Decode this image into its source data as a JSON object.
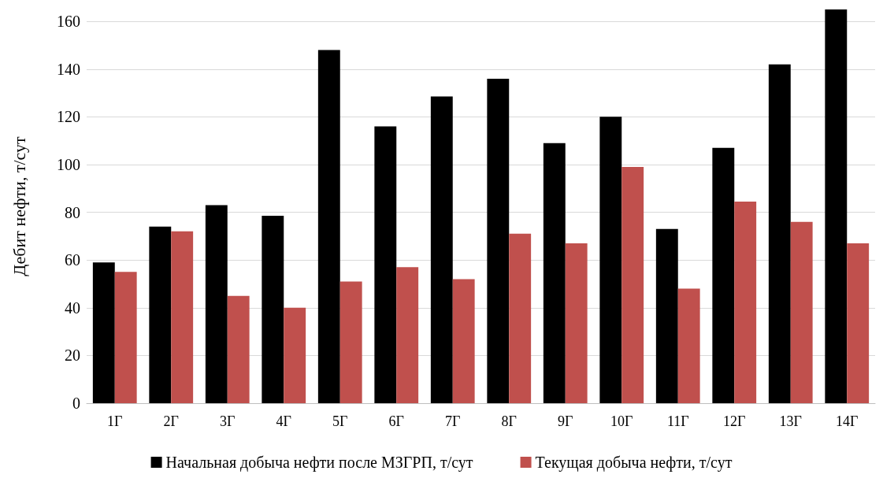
{
  "chart_data": {
    "type": "bar",
    "ylabel": "Дебит нефти, т/сут",
    "categories": [
      "1Г",
      "2Г",
      "3Г",
      "4Г",
      "5Г",
      "6Г",
      "7Г",
      "8Г",
      "9Г",
      "10Г",
      "11Г",
      "12Г",
      "13Г",
      "14Г"
    ],
    "series": [
      {
        "name": "Начальная добыча нефти после МЗГРП, т/сут",
        "color": "#000000",
        "values": [
          59,
          74,
          83,
          78.5,
          148,
          116,
          128.5,
          136,
          109,
          120,
          73,
          107,
          142,
          165
        ]
      },
      {
        "name": "Текущая добыча нефти, т/сут",
        "color": "#c0504d",
        "values": [
          55,
          72,
          45,
          40,
          51,
          57,
          52,
          71,
          67,
          99,
          48,
          84.5,
          76,
          67
        ]
      }
    ],
    "ylim": [
      0,
      165
    ],
    "yticks": [
      0,
      20,
      40,
      60,
      80,
      100,
      120,
      140,
      160
    ],
    "grid": "y",
    "legend": "bottom"
  }
}
